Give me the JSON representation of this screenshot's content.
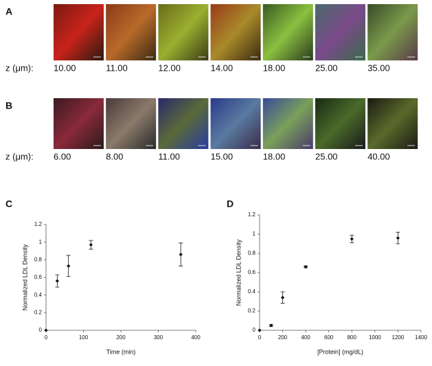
{
  "panels": [
    {
      "label": "A",
      "z_label": "z (μm):",
      "z_values": [
        "10.00",
        "11.00",
        "12.00",
        "14.00",
        "18.00",
        "25.00",
        "35.00"
      ]
    },
    {
      "label": "B",
      "z_label": "z (μm):",
      "z_values": [
        "6.00",
        "8.00",
        "11.00",
        "15.00",
        "18.00",
        "25.00",
        "40.00"
      ]
    }
  ],
  "chart_data": [
    {
      "type": "scatter",
      "panel_label": "C",
      "x_label": "Time (min)",
      "y_label": "Normalized LDL Density",
      "x": [
        0,
        30,
        60,
        120,
        360
      ],
      "values": [
        0,
        0.56,
        0.73,
        0.97,
        0.86
      ],
      "errors": [
        0,
        0.07,
        0.12,
        0.05,
        0.13
      ],
      "color": "#111111",
      "xlim": [
        0,
        400
      ],
      "xticks": [
        0,
        100,
        200,
        300,
        400
      ],
      "ylim": [
        0,
        1.2
      ],
      "yticks": [
        0,
        0.2,
        0.4,
        0.6,
        0.8,
        1,
        1.2
      ]
    },
    {
      "type": "scatter",
      "panel_label": "D",
      "x_label": "[Protein] (mg/dL)",
      "y_label": "Normalized LDL Density",
      "x": [
        0,
        100,
        200,
        400,
        800,
        1200
      ],
      "values": [
        0,
        0.05,
        0.34,
        0.66,
        0.95,
        0.96
      ],
      "errors": [
        0,
        0.01,
        0.06,
        0.01,
        0.04,
        0.06
      ],
      "color": "#111111",
      "xlim": [
        0,
        1400
      ],
      "xticks": [
        0,
        200,
        400,
        600,
        800,
        1000,
        1200,
        1400
      ],
      "ylim": [
        0,
        1.2
      ],
      "yticks": [
        0,
        0.2,
        0.4,
        0.6,
        0.8,
        1,
        1.2
      ]
    }
  ]
}
